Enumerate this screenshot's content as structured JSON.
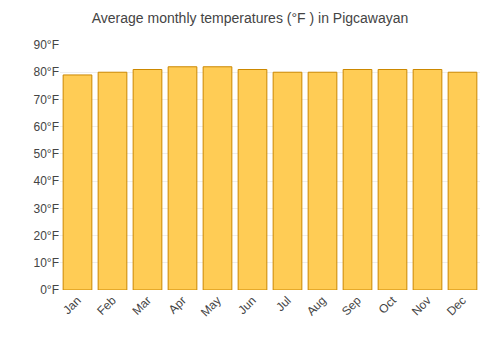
{
  "chart_data": {
    "type": "bar",
    "title": "Average monthly temperatures (°F ) in Pigcawayan",
    "categories": [
      "Jan",
      "Feb",
      "Mar",
      "Apr",
      "May",
      "Jun",
      "Jul",
      "Aug",
      "Sep",
      "Oct",
      "Nov",
      "Dec"
    ],
    "values": [
      79,
      80,
      81,
      82,
      82,
      81,
      80,
      80,
      81,
      81,
      81,
      80
    ],
    "color": "#FFCC55",
    "ylim": [
      0,
      90
    ],
    "yticks": [
      {
        "value": 0,
        "label": "0°F"
      },
      {
        "value": 10,
        "label": "10°F"
      },
      {
        "value": 20,
        "label": "20°F"
      },
      {
        "value": 30,
        "label": "30°F"
      },
      {
        "value": 40,
        "label": "40°F"
      },
      {
        "value": 50,
        "label": "50°F"
      },
      {
        "value": 60,
        "label": "60°F"
      },
      {
        "value": 70,
        "label": "70°F"
      },
      {
        "value": 80,
        "label": "80°F"
      },
      {
        "value": 90,
        "label": "90°F"
      }
    ],
    "grid": true
  }
}
